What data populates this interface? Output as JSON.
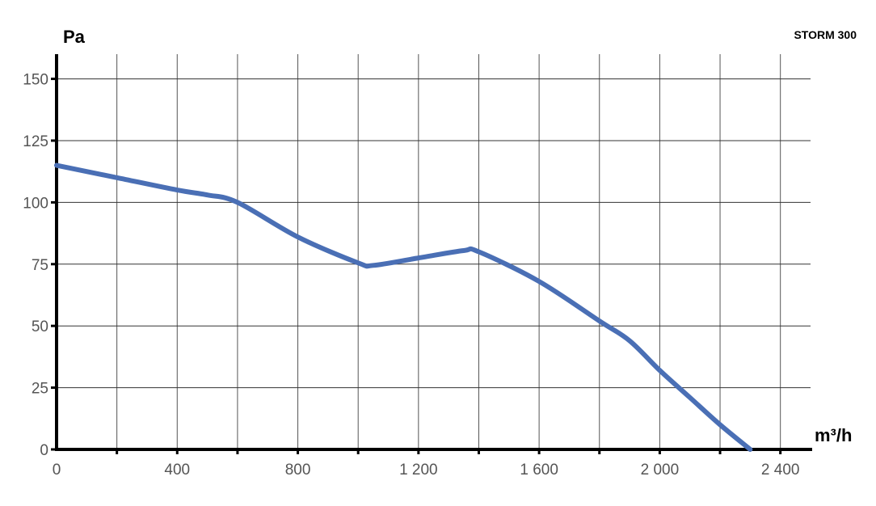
{
  "chart_data": {
    "type": "line",
    "title": "STORM 300",
    "xlabel": "m³/h",
    "ylabel": "Pa",
    "xlim": [
      0,
      2500
    ],
    "ylim": [
      0,
      160
    ],
    "x_grid_step": 200,
    "x_ticks": [
      0,
      400,
      800,
      1200,
      1600,
      2000,
      2400
    ],
    "x_tick_labels": [
      "0",
      "400",
      "800",
      "1 200",
      "1 600",
      "2 000",
      "2 400"
    ],
    "y_ticks": [
      0,
      25,
      50,
      75,
      100,
      125,
      150
    ],
    "y_tick_labels": [
      "0",
      "25",
      "50",
      "75",
      "100",
      "125",
      "150"
    ],
    "grid": true,
    "series": [
      {
        "color": "#4a6fb5",
        "x": [
          0,
          200,
          400,
          500,
          600,
          800,
          1000,
          1050,
          1200,
          1350,
          1400,
          1600,
          1800,
          1900,
          2000,
          2100,
          2200,
          2300
        ],
        "y": [
          115,
          110,
          105,
          103,
          100,
          86,
          75.5,
          74.5,
          77.5,
          80.5,
          80,
          68,
          52,
          44,
          32,
          21,
          10,
          0
        ]
      }
    ]
  }
}
